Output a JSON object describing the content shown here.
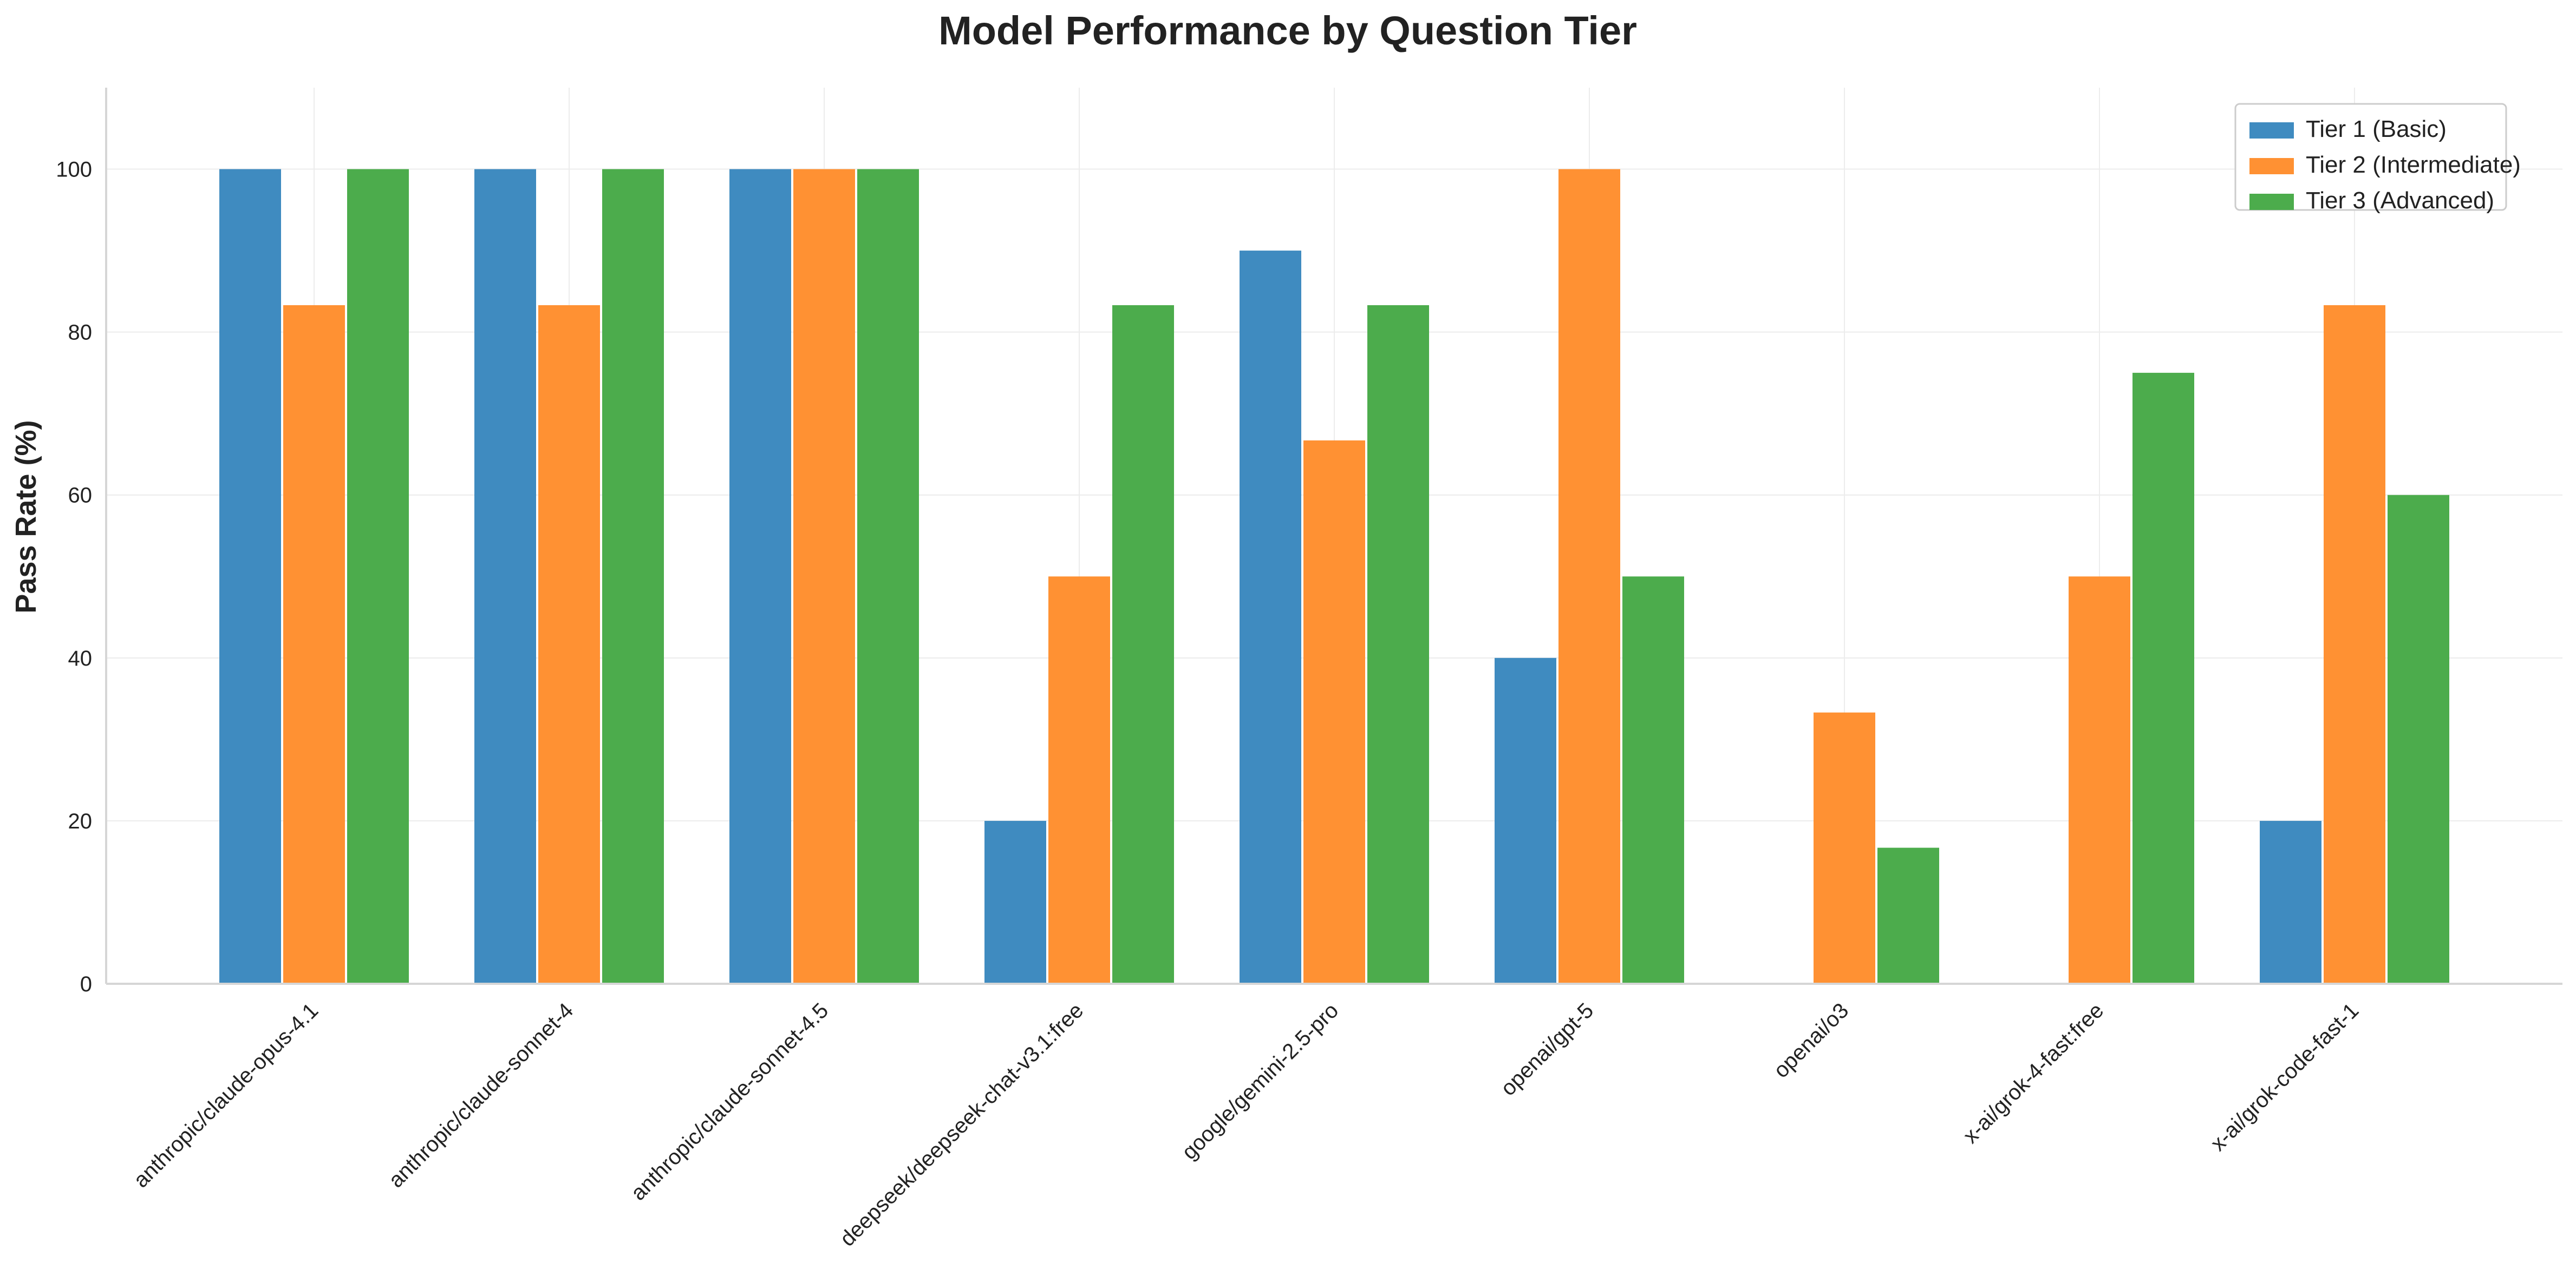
{
  "chart_data": {
    "type": "bar",
    "title": "Model Performance by Question Tier",
    "xlabel": "",
    "ylabel": "Pass Rate (%)",
    "ylim": [
      0,
      110
    ],
    "yticks": [
      0,
      20,
      40,
      60,
      80,
      100
    ],
    "grid": true,
    "legend_position": "top-right",
    "categories": [
      "anthropic/claude-opus-4.1",
      "anthropic/claude-sonnet-4",
      "anthropic/claude-sonnet-4.5",
      "deepseek/deepseek-chat-v3.1:free",
      "google/gemini-2.5-pro",
      "openai/gpt-5",
      "openai/o3",
      "x-ai/grok-4-fast:free",
      "x-ai/grok-code-fast-1"
    ],
    "series": [
      {
        "name": "Tier 1 (Basic)",
        "color": "#3f8bc0",
        "values": [
          100,
          100,
          100,
          20,
          90,
          40,
          0,
          0,
          20
        ]
      },
      {
        "name": "Tier 2 (Intermediate)",
        "color": "#ff9133",
        "values": [
          83.3,
          83.3,
          100,
          50,
          66.7,
          100,
          33.3,
          50,
          83.3
        ]
      },
      {
        "name": "Tier 3 (Advanced)",
        "color": "#4cac4c",
        "values": [
          100,
          100,
          100,
          83.3,
          83.3,
          50,
          16.7,
          75,
          60
        ]
      }
    ]
  }
}
